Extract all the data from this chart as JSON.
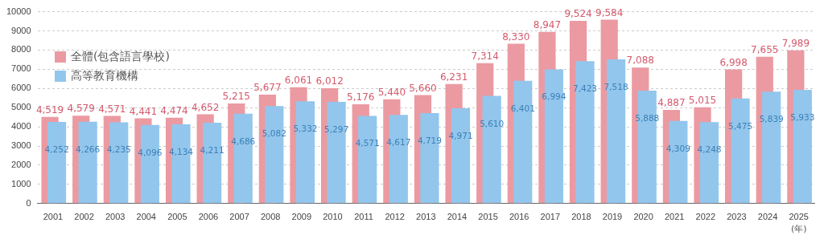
{
  "chart_data": {
    "type": "bar",
    "categories": [
      "2001",
      "2002",
      "2003",
      "2004",
      "2005",
      "2006",
      "2007",
      "2008",
      "2009",
      "2010",
      "2011",
      "2012",
      "2013",
      "2014",
      "2015",
      "2016",
      "2017",
      "2018",
      "2019",
      "2020",
      "2021",
      "2022",
      "2023",
      "2024",
      "2025"
    ],
    "series": [
      {
        "name": "全體(包含語言學校)",
        "color": "#eb9aa2",
        "values": [
          4519,
          4579,
          4571,
          4441,
          4474,
          4652,
          5215,
          5677,
          6061,
          6012,
          5176,
          5440,
          5660,
          6231,
          7314,
          8330,
          8947,
          9524,
          9584,
          7088,
          4887,
          5015,
          6998,
          7655,
          7989
        ],
        "value_labels": [
          "4,519",
          "4,579",
          "4,571",
          "4,441",
          "4,474",
          "4,652",
          "5,215",
          "5,677",
          "6,061",
          "6,012",
          "5,176",
          "5,440",
          "5,660",
          "6,231",
          "7,314",
          "8,330",
          "8,947",
          "9,524",
          "9,584",
          "7,088",
          "4,887",
          "5,015",
          "6,998",
          "7,655",
          "7,989"
        ]
      },
      {
        "name": "高等教育機構",
        "color": "#93c6ec",
        "values": [
          4252,
          4266,
          4235,
          4096,
          4134,
          4211,
          4686,
          5082,
          5332,
          5297,
          4571,
          4617,
          4719,
          4971,
          5610,
          6401,
          6994,
          7423,
          7518,
          5888,
          4309,
          4248,
          5475,
          5839,
          5933
        ],
        "value_labels": [
          "4,252",
          "4,266",
          "4,235",
          "4,096",
          "4,134",
          "4,211",
          "4,686",
          "5,082",
          "5,332",
          "5,297",
          "4,571",
          "4,617",
          "4,719",
          "4,971",
          "5,610",
          "6,401",
          "6,994",
          "7,423",
          "7,518",
          "5,888",
          "4,309",
          "4,248",
          "5,475",
          "5,839",
          "5,933"
        ]
      }
    ],
    "ylim": [
      0,
      10000
    ],
    "yticks": [
      0,
      1000,
      2000,
      3000,
      4000,
      5000,
      6000,
      7000,
      8000,
      9000,
      10000
    ],
    "grid": "y",
    "legend": "top left",
    "annotations": [
      "(年)"
    ]
  }
}
